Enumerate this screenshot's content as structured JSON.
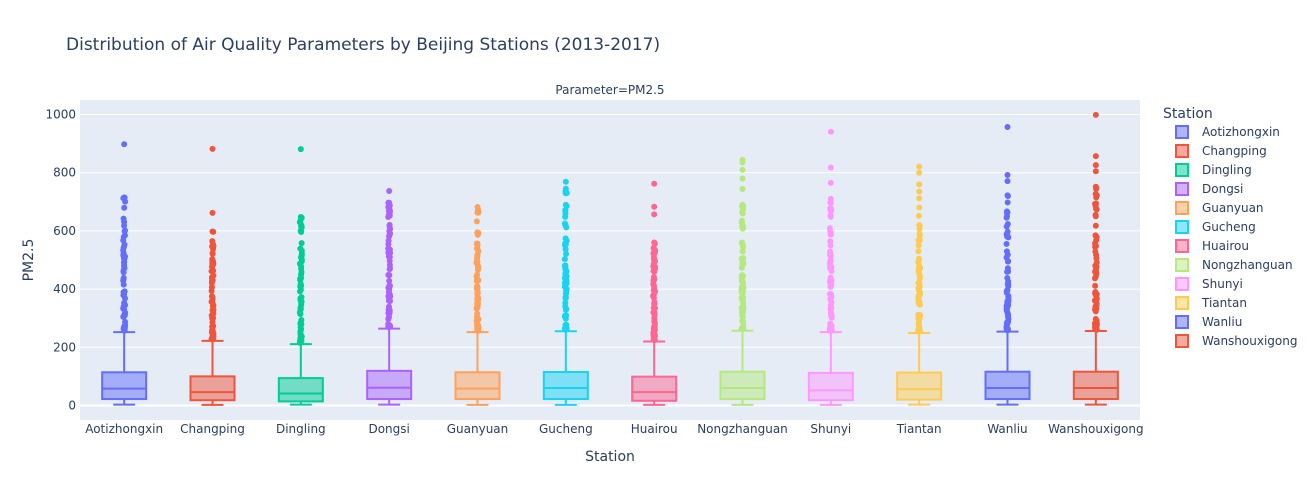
{
  "chart_data": {
    "type": "box",
    "title": "Distribution of Air Quality Parameters by Beijing Stations (2013-2017)",
    "facet_label": "Parameter=PM2.5",
    "xlabel": "Station",
    "ylabel": "PM2.5",
    "ylim": [
      -50,
      1050
    ],
    "yticks": [
      0,
      200,
      400,
      600,
      800,
      1000
    ],
    "grid": true,
    "legend": {
      "title": "Station",
      "placement": "right"
    },
    "series": [
      {
        "name": "Aotizhongxin",
        "color": "#636efa",
        "min": 3,
        "q1": 22,
        "median": 58,
        "q3": 114,
        "upper_fence": 252,
        "outlier_max_dense": 715,
        "outliers_extra": [
          898
        ]
      },
      {
        "name": "Changping",
        "color": "#EF553B",
        "min": 2,
        "q1": 18,
        "median": 46,
        "q3": 100,
        "upper_fence": 222,
        "outlier_max_dense": 598,
        "outliers_extra": [
          662,
          882
        ]
      },
      {
        "name": "Dingling",
        "color": "#00cc96",
        "min": 3,
        "q1": 14,
        "median": 41,
        "q3": 94,
        "upper_fence": 211,
        "outlier_max_dense": 648,
        "outliers_extra": [
          881
        ]
      },
      {
        "name": "Dongsi",
        "color": "#ab63fa",
        "min": 3,
        "q1": 22,
        "median": 61,
        "q3": 119,
        "upper_fence": 264,
        "outlier_max_dense": 697,
        "outliers_extra": [
          737
        ]
      },
      {
        "name": "Guanyuan",
        "color": "#FFA15A",
        "min": 2,
        "q1": 22,
        "median": 58,
        "q3": 114,
        "upper_fence": 252,
        "outlier_max_dense": 682,
        "outliers_extra": []
      },
      {
        "name": "Gucheng",
        "color": "#19d3f3",
        "min": 2,
        "q1": 22,
        "median": 60,
        "q3": 115,
        "upper_fence": 255,
        "outlier_max_dense": 745,
        "outliers_extra": [
          769
        ]
      },
      {
        "name": "Huairou",
        "color": "#FF6692",
        "min": 2,
        "q1": 16,
        "median": 46,
        "q3": 99,
        "upper_fence": 220,
        "outlier_max_dense": 560,
        "outliers_extra": [
          657,
          683,
          762
        ]
      },
      {
        "name": "Nongzhanguan",
        "color": "#B6E880",
        "min": 2,
        "q1": 22,
        "median": 60,
        "q3": 116,
        "upper_fence": 257,
        "outlier_max_dense": 690,
        "outliers_extra": [
          744,
          780,
          810,
          835,
          844
        ]
      },
      {
        "name": "Shunyi",
        "color": "#FF97FF",
        "min": 2,
        "q1": 18,
        "median": 52,
        "q3": 112,
        "upper_fence": 252,
        "outlier_max_dense": 710,
        "outliers_extra": [
          765,
          818,
          941
        ]
      },
      {
        "name": "Tiantan",
        "color": "#FECB52",
        "min": 3,
        "q1": 20,
        "median": 56,
        "q3": 113,
        "upper_fence": 249,
        "outlier_max_dense": 760,
        "outliers_extra": [
          800,
          821
        ]
      },
      {
        "name": "Wanliu",
        "color": "#636efa",
        "min": 3,
        "q1": 22,
        "median": 60,
        "q3": 116,
        "upper_fence": 254,
        "outlier_max_dense": 722,
        "outliers_extra": [
          771,
          792,
          957
        ]
      },
      {
        "name": "Wanshouxigong",
        "color": "#EF553B",
        "min": 3,
        "q1": 22,
        "median": 60,
        "q3": 116,
        "upper_fence": 256,
        "outlier_max_dense": 752,
        "outliers_extra": [
          805,
          826,
          857,
          999
        ]
      }
    ]
  }
}
